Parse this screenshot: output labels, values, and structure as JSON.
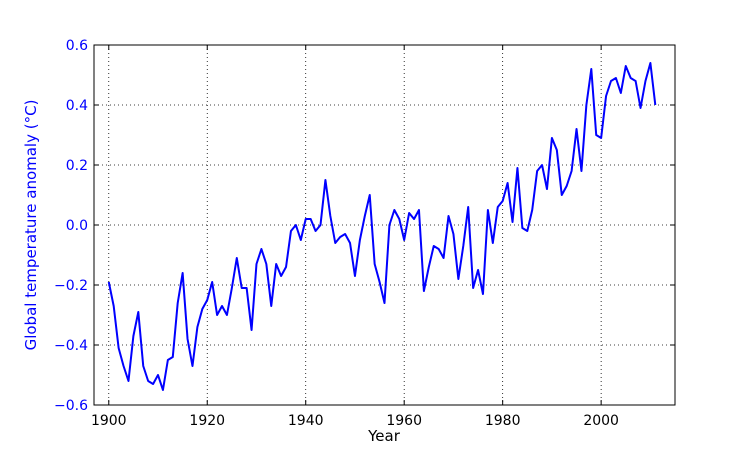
{
  "chart_data": {
    "type": "line",
    "title": "",
    "xlabel": "Year",
    "ylabel": "Global temperature anomaly (°C)",
    "xlim": [
      1897,
      2015
    ],
    "ylim": [
      -0.6,
      0.6
    ],
    "xticks": [
      1900,
      1920,
      1940,
      1960,
      1980,
      2000
    ],
    "yticks": [
      -0.6,
      -0.4,
      -0.2,
      0.0,
      0.2,
      0.4,
      0.6
    ],
    "xtick_labels": [
      "1900",
      "1920",
      "1940",
      "1960",
      "1980",
      "2000"
    ],
    "ytick_labels": [
      "−0.6",
      "−0.4",
      "−0.2",
      "0.0",
      "0.2",
      "0.4",
      "0.6"
    ],
    "grid": true,
    "grid_style": "dotted",
    "colors": {
      "line": "#0000ff",
      "ylabel_and_yticks": "#0000ff",
      "axis": "#000000"
    },
    "series": [
      {
        "x": [
          1900,
          1901,
          1902,
          1903,
          1904,
          1905,
          1906,
          1907,
          1908,
          1909,
          1910,
          1911,
          1912,
          1913,
          1914,
          1915,
          1916,
          1917,
          1918,
          1919,
          1920,
          1921,
          1922,
          1923,
          1924,
          1925,
          1926,
          1927,
          1928,
          1929,
          1930,
          1931,
          1932,
          1933,
          1934,
          1935,
          1936,
          1937,
          1938,
          1939,
          1940,
          1941,
          1942,
          1943,
          1944,
          1945,
          1946,
          1947,
          1948,
          1949,
          1950,
          1951,
          1952,
          1953,
          1954,
          1955,
          1956,
          1957,
          1958,
          1959,
          1960,
          1961,
          1962,
          1963,
          1964,
          1965,
          1966,
          1967,
          1968,
          1969,
          1970,
          1971,
          1972,
          1973,
          1974,
          1975,
          1976,
          1977,
          1978,
          1979,
          1980,
          1981,
          1982,
          1983,
          1984,
          1985,
          1986,
          1987,
          1988,
          1989,
          1990,
          1991,
          1992,
          1993,
          1994,
          1995,
          1996,
          1997,
          1998,
          1999,
          2000,
          2001,
          2002,
          2003,
          2004,
          2005,
          2006,
          2007,
          2008,
          2009,
          2010,
          2011
        ],
        "values": [
          -0.19,
          -0.27,
          -0.41,
          -0.47,
          -0.52,
          -0.37,
          -0.29,
          -0.47,
          -0.52,
          -0.53,
          -0.5,
          -0.55,
          -0.45,
          -0.44,
          -0.26,
          -0.16,
          -0.38,
          -0.47,
          -0.34,
          -0.28,
          -0.25,
          -0.19,
          -0.3,
          -0.27,
          -0.3,
          -0.21,
          -0.11,
          -0.21,
          -0.21,
          -0.35,
          -0.13,
          -0.08,
          -0.13,
          -0.27,
          -0.13,
          -0.17,
          -0.14,
          -0.02,
          0.0,
          -0.05,
          0.02,
          0.02,
          -0.02,
          0.0,
          0.15,
          0.03,
          -0.06,
          -0.04,
          -0.03,
          -0.06,
          -0.17,
          -0.05,
          0.03,
          0.1,
          -0.13,
          -0.19,
          -0.26,
          0.0,
          0.05,
          0.02,
          -0.05,
          0.04,
          0.02,
          0.05,
          -0.22,
          -0.14,
          -0.07,
          -0.08,
          -0.11,
          0.03,
          -0.03,
          -0.18,
          -0.07,
          0.06,
          -0.21,
          -0.15,
          -0.23,
          0.05,
          -0.06,
          0.06,
          0.08,
          0.14,
          0.01,
          0.19,
          -0.01,
          -0.02,
          0.05,
          0.18,
          0.2,
          0.12,
          0.29,
          0.25,
          0.1,
          0.13,
          0.18,
          0.32,
          0.18,
          0.4,
          0.52,
          0.3,
          0.29,
          0.43,
          0.48,
          0.49,
          0.44,
          0.53,
          0.49,
          0.48,
          0.39,
          0.48,
          0.54,
          0.4
        ]
      }
    ]
  }
}
